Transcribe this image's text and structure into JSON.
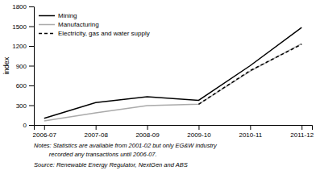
{
  "chart_data": {
    "type": "line",
    "categories": [
      "2006-07",
      "2007-08",
      "2008-09",
      "2009-10",
      "2010-11",
      "2011-12"
    ],
    "series": [
      {
        "name": "Mining",
        "color": "#000000",
        "line_style": "solid",
        "values": [
          100,
          340,
          430,
          375,
          900,
          1480
        ]
      },
      {
        "name": "Manufacturing",
        "color": "#aaaaaa",
        "line_style": "solid",
        "values": [
          60,
          185,
          295,
          315,
          815,
          1235
        ]
      },
      {
        "name": "Electricity, gas and water supply",
        "color": "#000000",
        "line_style": "dashed",
        "values": [
          null,
          null,
          null,
          315,
          825,
          1225
        ]
      }
    ],
    "ylabel": "index",
    "ylim": [
      0,
      1800
    ],
    "yticks": [
      0,
      300,
      600,
      900,
      1200,
      1500,
      1800
    ],
    "grid": false,
    "legend": "upper left",
    "annotations": [
      "Notes: Statistics are available from 2001-02 but only EG&W industry",
      "         recorded any transactions until 2006-07.",
      "Source: Renewable Energy Regulator, NextGen and ABS"
    ]
  }
}
